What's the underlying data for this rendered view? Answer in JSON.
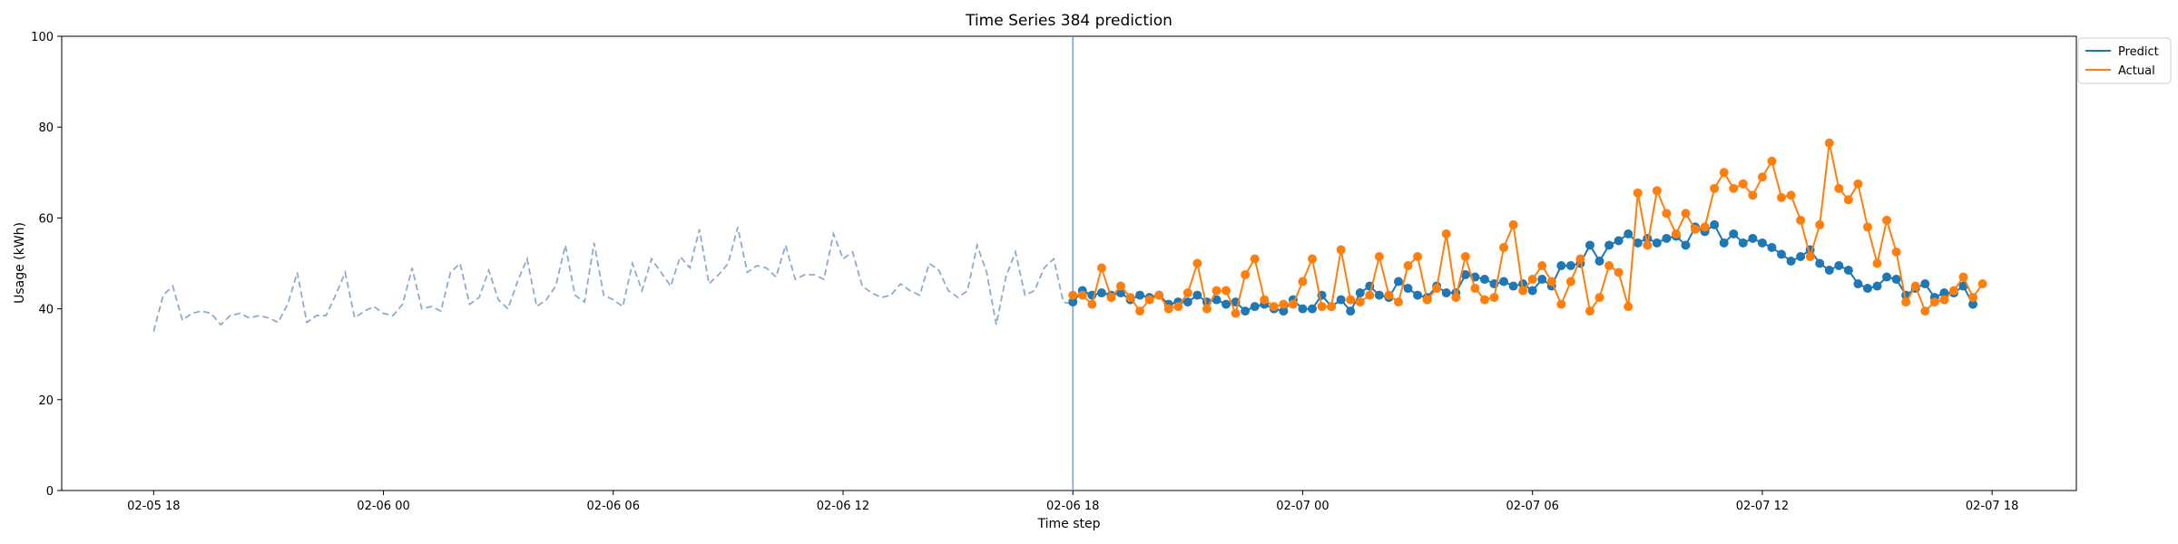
{
  "chart_data": {
    "type": "line",
    "title": "Time Series 384 prediction",
    "xlabel": "Time step",
    "ylabel": "Usage (kWh)",
    "ylim": [
      0,
      100
    ],
    "yticks": [
      0,
      20,
      40,
      60,
      80,
      100
    ],
    "xticks": [
      {
        "value": 0,
        "label": "02-05 18"
      },
      {
        "value": 6,
        "label": "02-06 00"
      },
      {
        "value": 12,
        "label": "02-06 06"
      },
      {
        "value": 18,
        "label": "02-06 12"
      },
      {
        "value": 24,
        "label": "02-06 18"
      },
      {
        "value": 30,
        "label": "02-07 00"
      },
      {
        "value": 36,
        "label": "02-07 06"
      },
      {
        "value": 42,
        "label": "02-07 12"
      },
      {
        "value": 48,
        "label": "02-07 18"
      }
    ],
    "xlim": [
      -2.4,
      50.2
    ],
    "forecast_start": 24,
    "step": 0.25,
    "legend": "top-right-outside",
    "history": {
      "start": 0,
      "values": [
        35,
        43,
        45,
        37.5,
        39,
        39.5,
        39,
        36.5,
        38.5,
        39,
        38,
        38.5,
        38,
        37,
        41,
        48,
        37,
        38.5,
        38.5,
        43,
        48,
        38,
        39.5,
        40.5,
        39,
        38.5,
        41,
        49,
        40,
        40.5,
        39.5,
        48,
        50,
        41,
        42.5,
        48.5,
        42,
        40,
        46,
        51,
        40.5,
        42,
        45,
        54,
        43,
        41.5,
        54.5,
        43,
        42,
        40.5,
        50,
        44,
        51,
        48,
        45,
        51.5,
        49,
        57.5,
        45.5,
        47.5,
        50,
        58,
        48,
        49.5,
        49,
        47,
        54,
        46.5,
        47.5,
        47.5,
        46.5,
        56.5,
        51,
        52.5,
        45,
        43.5,
        42.5,
        43,
        45.5,
        44,
        43,
        50,
        48.5,
        44,
        42.5,
        44,
        54,
        48,
        36.5,
        47,
        52.5,
        43,
        44,
        49,
        51,
        41.5,
        41
      ]
    },
    "series": [
      {
        "name": "Predict",
        "color": "#1f77b4",
        "start": 24,
        "values": [
          41.5,
          44,
          43,
          43.5,
          43,
          43.5,
          42,
          43,
          42.5,
          43,
          41,
          41.5,
          41.5,
          43,
          41.5,
          42,
          41,
          41.5,
          39.5,
          40.5,
          41,
          40,
          39.5,
          42,
          40,
          40,
          43,
          40.5,
          42,
          39.5,
          43.5,
          45,
          43,
          42.5,
          46,
          44.5,
          43,
          42.5,
          45,
          43.5,
          43.5,
          47.5,
          47,
          46.5,
          45.5,
          46,
          45,
          45.5,
          44,
          46.5,
          45,
          49.5,
          49.5,
          50,
          54,
          50.5,
          54,
          55,
          56.5,
          54.5,
          55.5,
          54.5,
          55.5,
          56,
          54,
          58,
          57,
          58.5,
          54.5,
          56.5,
          54.5,
          55.5,
          54.5,
          53.5,
          52,
          50.5,
          51.5,
          53,
          50,
          48.5,
          49.5,
          48.5,
          45.5,
          44.5,
          45,
          47,
          46.5,
          43,
          44.5,
          45.5,
          42.5,
          43.5,
          43.5,
          45,
          41
        ]
      },
      {
        "name": "Actual",
        "color": "#ff7f0e",
        "start": 24,
        "values": [
          43,
          43,
          41,
          49,
          42.5,
          45,
          42.5,
          39.5,
          42,
          43,
          40,
          40.5,
          43.5,
          50,
          40,
          44,
          44,
          39,
          47.5,
          51,
          42,
          40.5,
          41,
          41,
          46,
          51,
          40.5,
          40.5,
          53,
          42,
          41.5,
          43,
          51.5,
          43,
          41.5,
          49.5,
          51.5,
          42,
          44.5,
          56.5,
          42.5,
          51.5,
          44.5,
          42,
          42.5,
          53.5,
          58.5,
          44,
          46.5,
          49.5,
          46,
          41,
          46,
          51,
          39.5,
          42.5,
          49.5,
          48,
          40.5,
          65.5,
          54,
          66,
          61,
          56.5,
          61,
          57.5,
          58,
          66.5,
          70,
          66.5,
          67.5,
          65,
          69,
          72.5,
          64.5,
          65,
          59.5,
          51.5,
          58.5,
          76.5,
          66.5,
          64,
          67.5,
          58,
          50,
          59.5,
          52.5,
          41.5,
          45,
          39.5,
          41.5,
          42,
          44,
          47,
          42.5,
          45.5
        ]
      }
    ]
  }
}
